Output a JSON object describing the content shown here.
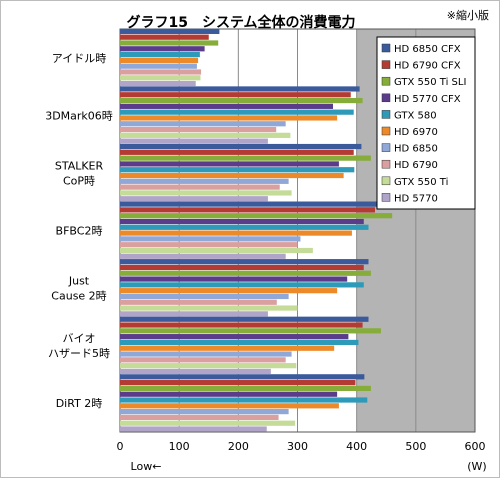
{
  "title": "グラフ15　システム全体の消費電力",
  "note": "※縮小版",
  "chart_data": {
    "type": "bar",
    "orientation": "horizontal",
    "categories": [
      [
        "アイドル時"
      ],
      [
        "3DMark06時"
      ],
      [
        "STALKER",
        "CoP時"
      ],
      [
        "BFBC2時"
      ],
      [
        "Just",
        "Cause 2時"
      ],
      [
        "バイオ",
        "ハザード5時"
      ],
      [
        "DiRT 2時"
      ]
    ],
    "xlim": [
      0,
      600
    ],
    "xticks": [
      "0",
      "100",
      "200",
      "300",
      "400",
      "500",
      "600"
    ],
    "xlabel": "(W)",
    "low_label": "Low←",
    "grid": true,
    "legend_position": "top-right",
    "series": [
      {
        "name": "HD 6850 CFX",
        "color": "#3a5a9c",
        "values": [
          168,
          405,
          408,
          436,
          420,
          420,
          413
        ]
      },
      {
        "name": "HD 6790 CFX",
        "color": "#b43a34",
        "values": [
          150,
          390,
          395,
          431,
          412,
          410,
          398
        ]
      },
      {
        "name": "GTX 550 Ti SLI",
        "color": "#86ac3a",
        "values": [
          166,
          410,
          424,
          460,
          424,
          441,
          424
        ]
      },
      {
        "name": "HD 5770 CFX",
        "color": "#5a3c8a",
        "values": [
          143,
          360,
          370,
          412,
          384,
          386,
          367
        ]
      },
      {
        "name": "GTX 580",
        "color": "#2c9ab8",
        "values": [
          135,
          395,
          396,
          420,
          412,
          403,
          418
        ]
      },
      {
        "name": "HD 6970",
        "color": "#ec8a2a",
        "values": [
          132,
          367,
          378,
          392,
          367,
          362,
          370
        ]
      },
      {
        "name": "HD 6850",
        "color": "#90a8d8",
        "values": [
          130,
          280,
          285,
          305,
          285,
          290,
          285
        ]
      },
      {
        "name": "HD 6790",
        "color": "#daa0a0",
        "values": [
          137,
          264,
          270,
          300,
          265,
          280,
          268
        ]
      },
      {
        "name": "GTX 550 Ti",
        "color": "#c4dc98",
        "values": [
          136,
          288,
          290,
          326,
          300,
          298,
          296
        ]
      },
      {
        "name": "HD 5770",
        "color": "#b0a4c8",
        "values": [
          128,
          250,
          250,
          280,
          250,
          255,
          248
        ]
      }
    ]
  }
}
